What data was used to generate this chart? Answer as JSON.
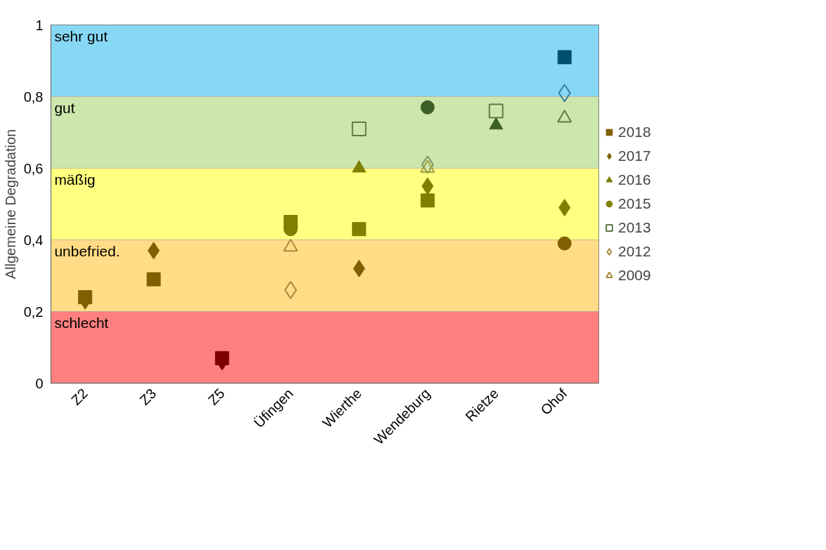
{
  "chart_data": {
    "type": "scatter",
    "ylabel": "Allgemeine Degradation",
    "categories": [
      "Z2",
      "Z3",
      "Z5",
      "Üfingen",
      "Wierthe",
      "Wendeburg",
      "Rietze",
      "Ohof"
    ],
    "ylim": [
      0,
      1
    ],
    "yticks": [
      0,
      {
        "value": 0.2,
        "label": "0,2"
      },
      {
        "value": 0.4,
        "label": "0,4"
      },
      {
        "value": 0.6,
        "label": "0,6"
      },
      {
        "value": 0.8,
        "label": "0,8"
      },
      1
    ],
    "grid": false,
    "legend": "right",
    "bands": [
      {
        "axis": "y",
        "from": 0.8,
        "to": 1,
        "label": "sehr gut",
        "color": "#87d8f5"
      },
      {
        "axis": "y",
        "from": 0.6,
        "to": 0.8,
        "label": "gut",
        "color": "#cce6ad"
      },
      {
        "axis": "y",
        "from": 0.4,
        "to": 0.6,
        "label": "mäßig",
        "color": "#ffff80"
      },
      {
        "axis": "y",
        "from": 0.2,
        "to": 0.4,
        "label": "unbefried.",
        "color": "#ffdc85"
      },
      {
        "axis": "y",
        "from": 0,
        "to": 0.2,
        "label": "schlecht",
        "color": "#ff8080"
      }
    ],
    "series": [
      {
        "name": "2018",
        "marker": "square",
        "values": [
          0.24,
          0.29,
          0.07,
          0.45,
          0.43,
          0.51,
          null,
          0.91
        ],
        "colors": [
          "#7f5f00",
          "#7f5f00",
          "#7f0000",
          "#7f7f00",
          "#7f7f00",
          "#7f7f00",
          null,
          "#004f6e"
        ]
      },
      {
        "name": "2017",
        "marker": "diamond",
        "values": [
          0.23,
          0.37,
          0.06,
          null,
          0.32,
          0.55,
          null,
          0.49
        ],
        "colors": [
          "#7f5f00",
          "#7f5f00",
          "#7f0000",
          null,
          "#7f5f00",
          "#7f7f00",
          null,
          "#7f7f00"
        ]
      },
      {
        "name": "2016",
        "marker": "triangle",
        "values": [
          null,
          null,
          null,
          null,
          0.6,
          null,
          0.72,
          null
        ],
        "colors": [
          null,
          null,
          null,
          null,
          "#7f7f00",
          null,
          "#3d5e26",
          null
        ]
      },
      {
        "name": "2015",
        "marker": "circle",
        "values": [
          null,
          null,
          null,
          0.43,
          null,
          0.77,
          null,
          0.39
        ],
        "colors": [
          null,
          null,
          null,
          "#7f7f00",
          null,
          "#3d5e26",
          null,
          "#7f5f00"
        ]
      },
      {
        "name": "2013",
        "marker": "square",
        "values": [
          null,
          null,
          null,
          null,
          0.71,
          null,
          0.76,
          null
        ],
        "colors": [
          null,
          null,
          null,
          null,
          "#5e7a4a",
          null,
          "#5e7a4a",
          null
        ]
      },
      {
        "name": "2012",
        "marker": "diamond",
        "values": [
          null,
          null,
          null,
          0.26,
          null,
          0.61,
          null,
          0.81
        ],
        "colors": [
          null,
          null,
          null,
          "#a88c3e",
          null,
          "#7a9a6a",
          null,
          "#3d7fa0"
        ]
      },
      {
        "name": "2009",
        "marker": "triangle",
        "values": [
          null,
          null,
          null,
          0.38,
          null,
          0.6,
          null,
          0.74
        ],
        "colors": [
          null,
          null,
          null,
          "#a88c3e",
          null,
          "#a0a040",
          null,
          "#5e7a4a"
        ]
      }
    ]
  }
}
